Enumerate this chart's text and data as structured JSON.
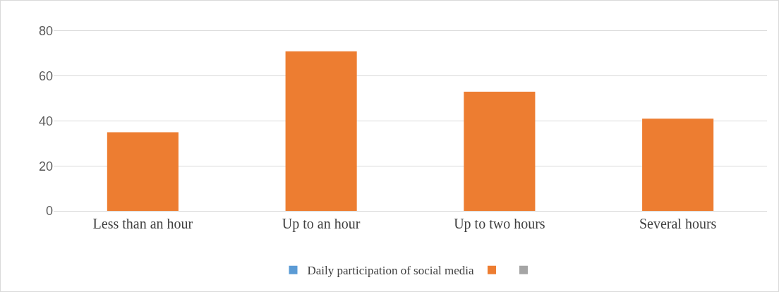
{
  "chart_data": {
    "type": "bar",
    "categories": [
      "Less than an hour",
      "Up to an hour",
      "Up to two hours",
      "Several hours"
    ],
    "series": [
      {
        "name": "Daily participation of social media",
        "color": "#5b9bd5",
        "values": [
          null,
          null,
          null,
          null
        ]
      },
      {
        "color": "#ed7d31",
        "values": [
          35,
          71,
          53,
          41
        ]
      },
      {
        "color": "#a5a5a5",
        "values": [
          null,
          null,
          null,
          null
        ]
      }
    ],
    "ylim": [
      0,
      80
    ],
    "yticks": [
      0,
      20,
      40,
      60,
      80
    ],
    "grid": "y",
    "legend": "bottom"
  }
}
